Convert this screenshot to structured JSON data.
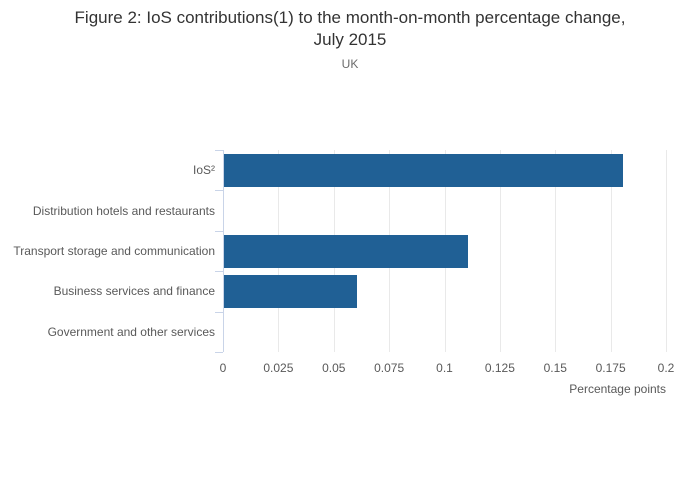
{
  "header": {
    "title": "Figure 2: IoS contributions(1) to the month-on-month percentage change,\nJuly 2015",
    "subtitle": "UK"
  },
  "chart_data": {
    "type": "bar",
    "orientation": "horizontal",
    "title": "Figure 2: IoS contributions(1) to the month-on-month percentage change, July 2015",
    "subtitle": "UK",
    "categories": [
      "IoS²",
      "Distribution hotels and restaurants",
      "Transport storage and communication",
      "Business services and finance",
      "Government and other services"
    ],
    "values": [
      0.18,
      0,
      0.11,
      0.06,
      0
    ],
    "xlabel": "Percentage points",
    "xlim": [
      0,
      0.2
    ],
    "xticks": [
      0,
      0.025,
      0.05,
      0.075,
      0.1,
      0.125,
      0.15,
      0.175,
      0.2
    ],
    "xtick_labels": [
      "0",
      "0.025",
      "0.05",
      "0.075",
      "0.1",
      "0.125",
      "0.15",
      "0.175",
      "0.2"
    ],
    "legend": "none",
    "grid": true,
    "colors": {
      "bar": "#206095",
      "grid": "#e9e9e9",
      "axis": "#c9d4e8",
      "title": "#333333",
      "labels": "#595959"
    }
  }
}
